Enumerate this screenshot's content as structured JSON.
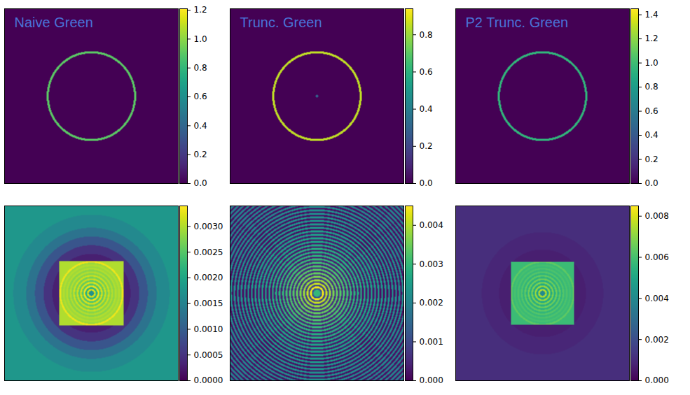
{
  "chart_data": [
    {
      "type": "heatmap",
      "title": "Naive Green",
      "color": "viridis",
      "tick_labels": false,
      "xlim": [
        -1,
        1
      ],
      "ylim": [
        -1,
        1
      ],
      "colorbar": {
        "range": [
          0,
          1.21
        ],
        "ticks": [
          {
            "value": 0,
            "label": "0.0"
          },
          0.2,
          0.4,
          0.6,
          0.8,
          {
            "value": 1,
            "label": "1.0"
          },
          1.2
        ]
      },
      "cells": {
        "rings": {
          "radius": [
            0.49,
            0.515,
            1.5
          ],
          "values": [
            0,
            0.9,
            0
          ]
        }
      }
    },
    {
      "type": "heatmap",
      "title": "Trunc. Green",
      "color": "viridis",
      "tick_labels": false,
      "xlim": [
        -1,
        1
      ],
      "ylim": [
        -1,
        1
      ],
      "colorbar": {
        "range": [
          0,
          0.94
        ],
        "ticks": [
          {
            "value": 0,
            "label": "0.0"
          },
          0.2,
          0.4,
          0.6,
          0.8
        ]
      },
      "cells": {
        "rings": {
          "radius": [
            0.015,
            0.49,
            0.515,
            1.5
          ],
          "values": [
            0.3,
            0,
            0.85,
            0
          ]
        }
      }
    },
    {
      "type": "heatmap",
      "title": "P2 Trunc. Green",
      "color": "viridis",
      "tick_labels": false,
      "xlim": [
        -1,
        1
      ],
      "ylim": [
        -1,
        1
      ],
      "colorbar": {
        "range": [
          0,
          1.45
        ],
        "ticks": [
          {
            "value": 0,
            "label": "0.0"
          },
          0.2,
          0.4,
          0.6,
          0.8,
          {
            "value": 1,
            "label": "1.0"
          },
          1.2,
          1.4
        ]
      },
      "cells": {
        "rings": {
          "radius": [
            0.49,
            0.515,
            1.5
          ],
          "values": [
            0,
            0.95,
            0
          ]
        }
      }
    },
    {
      "type": "heatmap",
      "color": "viridis",
      "tick_labels": false,
      "xlim": [
        -1,
        1
      ],
      "ylim": [
        -1,
        1
      ],
      "colorbar": {
        "range": [
          0,
          0.0034
        ],
        "ticks": [
          {
            "value": 0,
            "label": "0.0000"
          },
          0.0005,
          {
            "value": 0.001,
            "label": "0.0010"
          },
          0.0015,
          {
            "value": 0.002,
            "label": "0.0020"
          },
          0.0025,
          {
            "value": 0.003,
            "label": "0.0030"
          }
        ]
      },
      "cells": {
        "square_half_width": 0.37,
        "inside": {
          "radius": [
            0.03,
            0.05,
            0.07,
            0.09,
            0.11,
            0.13,
            0.15,
            0.17,
            0.19,
            0.21,
            0.23,
            0.25,
            0.27,
            0.29,
            0.31,
            0.33,
            0.35,
            0.37,
            0.6
          ],
          "values": [
            0.0017,
            0.0032,
            0.0022,
            0.0033,
            0.0025,
            0.0032,
            0.0026,
            0.0031,
            0.0027,
            0.0031,
            0.0028,
            0.003,
            0.0028,
            0.003,
            0.0029,
            0.003,
            0.0029,
            0.0033,
            0.003
          ]
        },
        "outside": {
          "radius": [
            0.45,
            0.55,
            0.65,
            0.75,
            0.9,
            1.5
          ],
          "values": [
            0.0003,
            0.0005,
            0.0009,
            0.0013,
            0.0016,
            0.0018
          ]
        }
      }
    },
    {
      "type": "heatmap",
      "color": "viridis",
      "tick_labels": false,
      "xlim": [
        -1,
        1
      ],
      "ylim": [
        -1,
        1
      ],
      "colorbar": {
        "range": [
          0,
          0.0045
        ],
        "ticks": [
          {
            "value": 0,
            "label": "0.000"
          },
          0.001,
          0.002,
          0.003,
          0.004
        ]
      },
      "cells": {
        "rings": {
          "radius": [
            0.02,
            0.04,
            0.06,
            0.08,
            0.1,
            0.12,
            0.14,
            0.16,
            0.18,
            0.2,
            0.22,
            0.24,
            0.26,
            0.28,
            0.3,
            0.32,
            0.34,
            0.36,
            0.38,
            0.4,
            0.42,
            0.44,
            0.46,
            0.48,
            0.5,
            0.52,
            0.54,
            0.56,
            0.58,
            0.6,
            0.62,
            0.64,
            0.66,
            0.68,
            0.7,
            0.72,
            0.74,
            0.76,
            0.78,
            0.8,
            0.82,
            0.84,
            0.86,
            0.88,
            0.9,
            0.92,
            0.94,
            0.96,
            0.98,
            1.0,
            1.02,
            1.04,
            1.06,
            1.08,
            1.1,
            1.12,
            1.14,
            1.16,
            1.18,
            1.2,
            1.22,
            1.24,
            1.26,
            1.28,
            1.3,
            1.32,
            1.34,
            1.36,
            1.38,
            1.4,
            1.42,
            1.44,
            1.46,
            1.48,
            1.5
          ],
          "values": [
            0.003,
            0.003,
            0.0012,
            0.0044,
            0.001,
            0.0041,
            0.0009,
            0.0038,
            0.0008,
            0.0036,
            0.0007,
            0.0034,
            0.0006,
            0.0033,
            0.0006,
            0.0032,
            0.0005,
            0.0031,
            0.0005,
            0.003,
            0.0004,
            0.0029,
            0.0004,
            0.0028,
            0.0004,
            0.0028,
            0.0003,
            0.0027,
            0.0003,
            0.0026,
            0.0003,
            0.0026,
            0.0003,
            0.0025,
            0.0003,
            0.0025,
            0.0002,
            0.0024,
            0.0002,
            0.0024,
            0.0002,
            0.0023,
            0.0002,
            0.0023,
            0.0002,
            0.0022,
            0.0002,
            0.0022,
            0.0002,
            0.0022,
            0.0002,
            0.0021,
            0.0002,
            0.0021,
            0.0002,
            0.0021,
            0.0002,
            0.002,
            0.0002,
            0.002,
            0.0002,
            0.002,
            0.0002,
            0.002,
            0.0002,
            0.0019,
            0.0002,
            0.0019,
            0.0002,
            0.0019,
            0.0002,
            0.0019,
            0.0002,
            0.0018,
            0.0002
          ]
        }
      }
    },
    {
      "type": "heatmap",
      "color": "viridis",
      "tick_labels": false,
      "xlim": [
        -1,
        1
      ],
      "ylim": [
        -1,
        1
      ],
      "colorbar": {
        "range": [
          0,
          0.0085
        ],
        "ticks": [
          {
            "value": 0,
            "label": "0.000"
          },
          0.002,
          0.004,
          0.006,
          0.008
        ]
      },
      "cells": {
        "square_half_width": 0.36,
        "inside": {
          "radius": [
            0.03,
            0.05,
            0.07,
            0.09,
            0.11,
            0.13,
            0.15,
            0.17,
            0.19,
            0.21,
            0.23,
            0.25,
            0.27,
            0.29,
            0.31,
            0.33,
            0.35,
            0.37,
            0.6
          ],
          "values": [
            0.004,
            0.0075,
            0.005,
            0.0072,
            0.0052,
            0.0068,
            0.0054,
            0.0066,
            0.0055,
            0.0064,
            0.0056,
            0.0062,
            0.0057,
            0.0061,
            0.0058,
            0.006,
            0.0058,
            0.0064,
            0.0058
          ]
        },
        "outside": {
          "radius": [
            0.5,
            0.7,
            1.5
          ],
          "values": [
            0.0007,
            0.0009,
            0.0011
          ]
        }
      }
    }
  ]
}
